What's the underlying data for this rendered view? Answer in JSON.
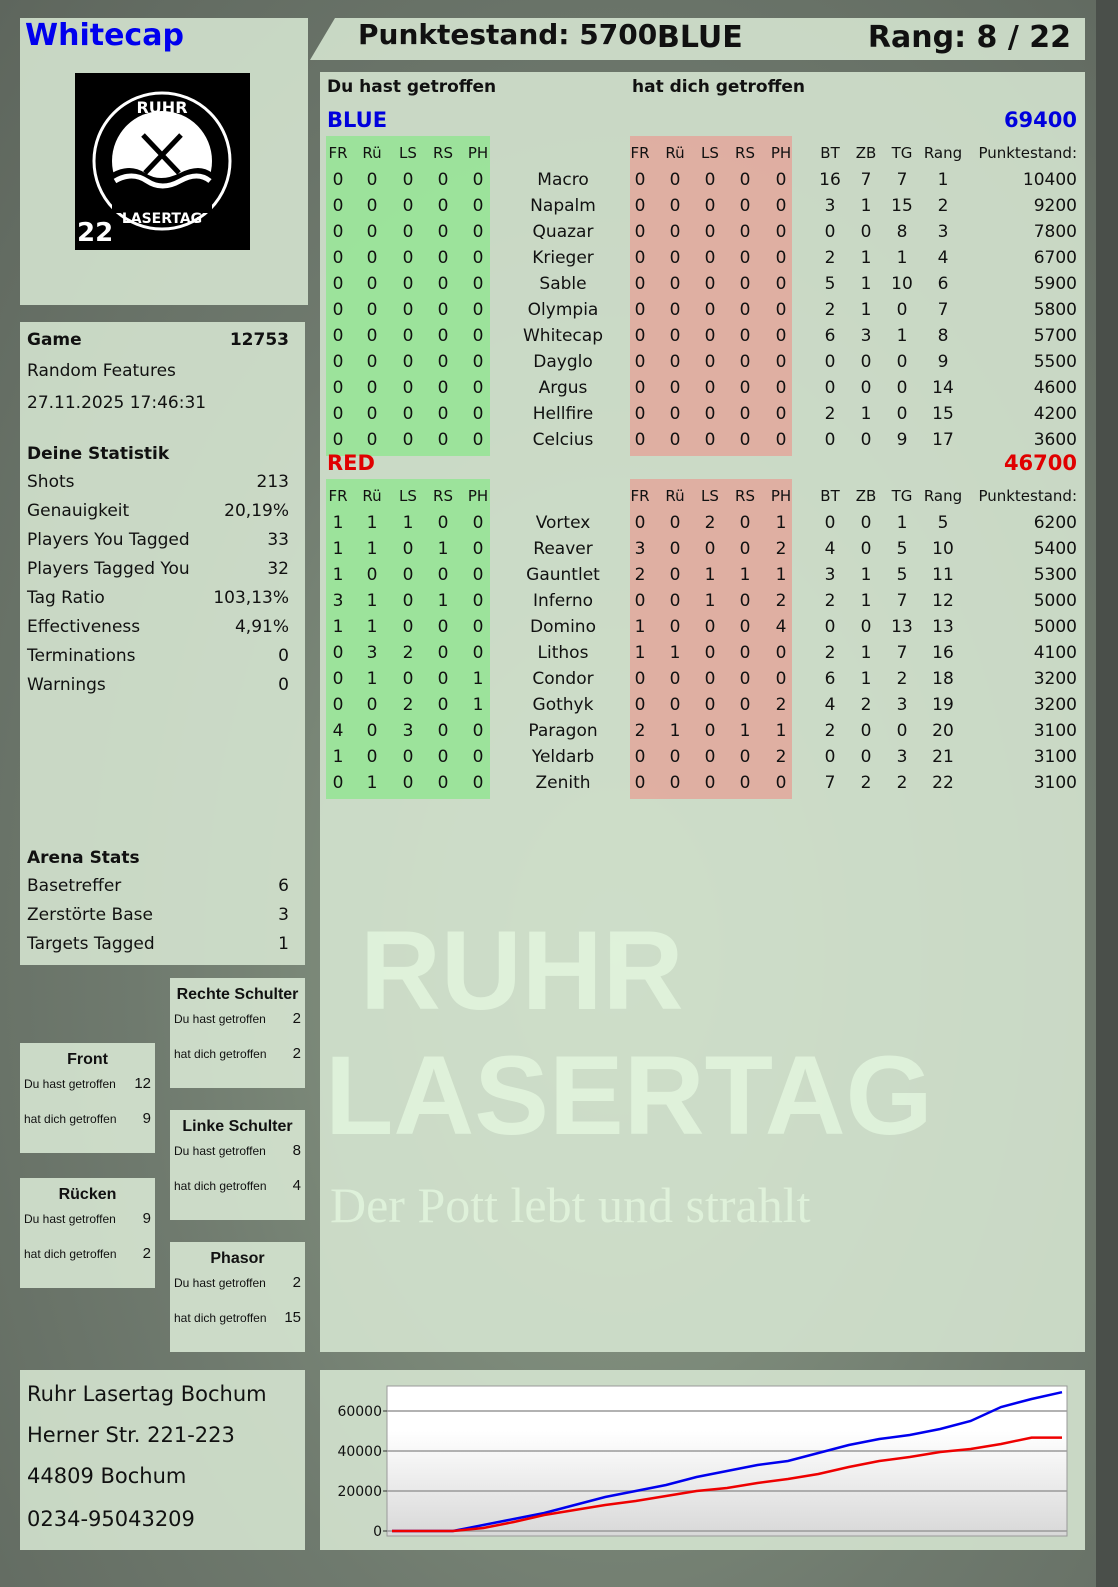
{
  "player": {
    "name": "Whitecap",
    "logo_text": "RUHR LASERTAG",
    "logo_number": "22"
  },
  "header": {
    "score_label": "Punktestand: 5700",
    "team": "BLUE",
    "rank_label": "Rang: 8 / 22"
  },
  "main": {
    "hit_by_you": "Du hast getroffen",
    "hit_you": "hat dich getroffen",
    "columns": {
      "left": [
        "FR",
        "Rü",
        "LS",
        "RS",
        "PH"
      ],
      "right": [
        "FR",
        "Rü",
        "LS",
        "RS",
        "PH"
      ],
      "stats": [
        "BT",
        "ZB",
        "TG",
        "Rang"
      ],
      "score": "Punktestand:"
    },
    "teams": [
      {
        "name": "BLUE",
        "total": "69400",
        "color": "#0000dd",
        "rows": [
          [
            "0",
            "0",
            "0",
            "0",
            "0",
            "Macro",
            "0",
            "0",
            "0",
            "0",
            "0",
            "16",
            "7",
            "7",
            "1",
            "10400"
          ],
          [
            "0",
            "0",
            "0",
            "0",
            "0",
            "Napalm",
            "0",
            "0",
            "0",
            "0",
            "0",
            "3",
            "1",
            "15",
            "2",
            "9200"
          ],
          [
            "0",
            "0",
            "0",
            "0",
            "0",
            "Quazar",
            "0",
            "0",
            "0",
            "0",
            "0",
            "0",
            "0",
            "8",
            "3",
            "7800"
          ],
          [
            "0",
            "0",
            "0",
            "0",
            "0",
            "Krieger",
            "0",
            "0",
            "0",
            "0",
            "0",
            "2",
            "1",
            "1",
            "4",
            "6700"
          ],
          [
            "0",
            "0",
            "0",
            "0",
            "0",
            "Sable",
            "0",
            "0",
            "0",
            "0",
            "0",
            "5",
            "1",
            "10",
            "6",
            "5900"
          ],
          [
            "0",
            "0",
            "0",
            "0",
            "0",
            "Olympia",
            "0",
            "0",
            "0",
            "0",
            "0",
            "2",
            "1",
            "0",
            "7",
            "5800"
          ],
          [
            "0",
            "0",
            "0",
            "0",
            "0",
            "Whitecap",
            "0",
            "0",
            "0",
            "0",
            "0",
            "6",
            "3",
            "1",
            "8",
            "5700"
          ],
          [
            "0",
            "0",
            "0",
            "0",
            "0",
            "Dayglo",
            "0",
            "0",
            "0",
            "0",
            "0",
            "0",
            "0",
            "0",
            "9",
            "5500"
          ],
          [
            "0",
            "0",
            "0",
            "0",
            "0",
            "Argus",
            "0",
            "0",
            "0",
            "0",
            "0",
            "0",
            "0",
            "0",
            "14",
            "4600"
          ],
          [
            "0",
            "0",
            "0",
            "0",
            "0",
            "Hellfire",
            "0",
            "0",
            "0",
            "0",
            "0",
            "2",
            "1",
            "0",
            "15",
            "4200"
          ],
          [
            "0",
            "0",
            "0",
            "0",
            "0",
            "Celcius",
            "0",
            "0",
            "0",
            "0",
            "0",
            "0",
            "0",
            "9",
            "17",
            "3600"
          ]
        ]
      },
      {
        "name": "RED",
        "total": "46700",
        "color": "#e00000",
        "rows": [
          [
            "1",
            "1",
            "1",
            "0",
            "0",
            "Vortex",
            "0",
            "0",
            "2",
            "0",
            "1",
            "0",
            "0",
            "1",
            "5",
            "6200"
          ],
          [
            "1",
            "1",
            "0",
            "1",
            "0",
            "Reaver",
            "3",
            "0",
            "0",
            "0",
            "2",
            "4",
            "0",
            "5",
            "10",
            "5400"
          ],
          [
            "1",
            "0",
            "0",
            "0",
            "0",
            "Gauntlet",
            "2",
            "0",
            "1",
            "1",
            "1",
            "3",
            "1",
            "5",
            "11",
            "5300"
          ],
          [
            "3",
            "1",
            "0",
            "1",
            "0",
            "Inferno",
            "0",
            "0",
            "1",
            "0",
            "2",
            "2",
            "1",
            "7",
            "12",
            "5000"
          ],
          [
            "1",
            "1",
            "0",
            "0",
            "0",
            "Domino",
            "1",
            "0",
            "0",
            "0",
            "4",
            "0",
            "0",
            "13",
            "13",
            "5000"
          ],
          [
            "0",
            "3",
            "2",
            "0",
            "0",
            "Lithos",
            "1",
            "1",
            "0",
            "0",
            "0",
            "2",
            "1",
            "7",
            "16",
            "4100"
          ],
          [
            "0",
            "1",
            "0",
            "0",
            "1",
            "Condor",
            "0",
            "0",
            "0",
            "0",
            "0",
            "6",
            "1",
            "2",
            "18",
            "3200"
          ],
          [
            "0",
            "0",
            "2",
            "0",
            "1",
            "Gothyk",
            "0",
            "0",
            "0",
            "0",
            "2",
            "4",
            "2",
            "3",
            "19",
            "3200"
          ],
          [
            "4",
            "0",
            "3",
            "0",
            "0",
            "Paragon",
            "2",
            "1",
            "0",
            "1",
            "1",
            "2",
            "0",
            "0",
            "20",
            "3100"
          ],
          [
            "1",
            "0",
            "0",
            "0",
            "0",
            "Yeldarb",
            "0",
            "0",
            "0",
            "0",
            "2",
            "0",
            "0",
            "3",
            "21",
            "3100"
          ],
          [
            "0",
            "1",
            "0",
            "0",
            "0",
            "Zenith",
            "0",
            "0",
            "0",
            "0",
            "0",
            "7",
            "2",
            "2",
            "22",
            "3100"
          ]
        ]
      }
    ]
  },
  "game": {
    "label": "Game",
    "id": "12753",
    "mode": "Random Features",
    "datetime": "27.11.2025 17:46:31",
    "stats_title": "Deine Statistik",
    "stats": [
      [
        "Shots",
        "213"
      ],
      [
        "Genauigkeit",
        "20,19%"
      ],
      [
        "Players You Tagged",
        "33"
      ],
      [
        "Players Tagged You",
        "32"
      ],
      [
        "Tag Ratio",
        "103,13%"
      ],
      [
        "Effectiveness",
        "4,91%"
      ],
      [
        "Terminations",
        "0"
      ],
      [
        "Warnings",
        "0"
      ]
    ],
    "arena_title": "Arena Stats",
    "arena": [
      [
        "Basetreffer",
        "6"
      ],
      [
        "Zerstörte Base",
        "3"
      ],
      [
        "Targets Tagged",
        "1"
      ]
    ]
  },
  "zones": {
    "hit_label": "Du hast getroffen",
    "got_label": "hat dich getroffen",
    "items": [
      {
        "name": "Rechte Schulter",
        "hit": "2",
        "got": "2"
      },
      {
        "name": "Front",
        "hit": "12",
        "got": "9"
      },
      {
        "name": "Linke Schulter",
        "hit": "8",
        "got": "4"
      },
      {
        "name": "Rücken",
        "hit": "9",
        "got": "2"
      },
      {
        "name": "Phasor",
        "hit": "2",
        "got": "15"
      }
    ]
  },
  "address": [
    "Ruhr Lasertag Bochum",
    "Herner Str. 221-223",
    "44809 Bochum",
    "0234-95043209"
  ],
  "watermark": {
    "line1": "RUHR",
    "line2": "LASERTAG",
    "slogan": "Der Pott lebt und strahlt"
  },
  "chart_data": {
    "type": "line",
    "ylim": [
      0,
      72500
    ],
    "yticks": [
      "0",
      "20000",
      "40000",
      "60000"
    ],
    "grid": true,
    "series": [
      {
        "color": "#0000ee",
        "values": [
          0,
          0,
          0,
          3000,
          6000,
          9000,
          13000,
          17000,
          20000,
          23000,
          27000,
          30000,
          33000,
          35000,
          39000,
          43000,
          46000,
          48000,
          51000,
          55000,
          62000,
          66000,
          69400
        ]
      },
      {
        "color": "#ee0000",
        "values": [
          0,
          0,
          0,
          1500,
          4500,
          8000,
          10500,
          13000,
          15000,
          17500,
          20000,
          21500,
          24000,
          26000,
          28500,
          32000,
          35000,
          37000,
          39500,
          41000,
          43500,
          46700,
          46700
        ]
      }
    ]
  }
}
